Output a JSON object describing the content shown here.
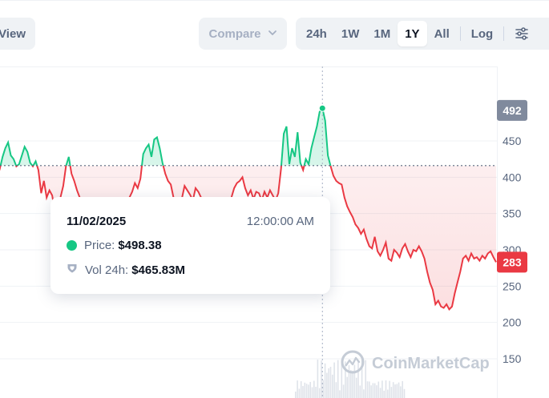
{
  "toolbar": {
    "view_label": "View",
    "compare_label": "Compare",
    "ranges": [
      {
        "label": "24h",
        "active": false
      },
      {
        "label": "1W",
        "active": false
      },
      {
        "label": "1M",
        "active": false
      },
      {
        "label": "1Y",
        "active": true
      },
      {
        "label": "All",
        "active": false
      }
    ],
    "log_label": "Log",
    "settings_icon": "sliders-icon"
  },
  "tooltip": {
    "date": "11/02/2025",
    "time": "12:00:00 AM",
    "price_label": "Price:",
    "price_value": "$498.38",
    "vol_label": "Vol 24h:",
    "vol_value": "$465.83M"
  },
  "watermark": "CoinMarketCap",
  "colors": {
    "up": "#16c784",
    "down": "#ea3943",
    "high_badge": "#808a9d"
  },
  "chart_data": {
    "type": "line",
    "y_ticks": [
      150,
      200,
      250,
      300,
      350,
      400,
      450
    ],
    "ylim": [
      125,
      525
    ],
    "reference_price": 416,
    "high_value": 492,
    "high_label": "492",
    "current_value": 283,
    "current_label": "283",
    "series": [
      {
        "values": [
          432,
          438,
          425,
          418,
          412,
          428,
          440,
          448,
          430,
          425,
          415,
          418,
          430,
          442,
          435,
          420,
          415,
          422,
          410,
          378,
          395,
          372,
          382,
          375,
          352,
          365,
          372,
          388,
          415,
          428,
          405,
          395,
          382,
          372,
          358,
          350,
          345,
          338,
          350,
          352,
          340,
          335,
          342,
          352,
          348,
          340,
          335,
          345,
          350,
          362,
          370,
          372,
          380,
          392,
          385,
          398,
          432,
          440,
          445,
          428,
          452,
          455,
          440,
          420,
          405,
          395,
          390,
          372,
          360,
          350,
          370,
          388,
          382,
          376,
          368,
          385,
          380,
          372,
          360,
          342,
          335,
          350,
          362,
          358,
          365,
          352,
          345,
          355,
          372,
          385,
          392,
          395,
          400,
          385,
          375,
          382,
          370,
          380,
          378,
          368,
          380,
          372,
          382,
          375,
          368,
          378,
          412,
          460,
          470,
          418,
          440,
          428,
          462,
          420,
          410,
          425,
          418,
          440,
          455,
          470,
          490,
          495,
          478,
          430,
          415,
          402,
          395,
          392,
          390,
          372,
          360,
          352,
          345,
          335,
          330,
          322,
          328,
          315,
          305,
          302,
          318,
          298,
          292,
          300,
          310,
          288,
          285,
          300,
          296,
          290,
          302,
          308,
          298,
          290,
          300,
          298,
          305,
          298,
          288,
          270,
          255,
          245,
          225,
          230,
          222,
          220,
          225,
          218,
          222,
          240,
          255,
          270,
          288,
          292,
          285,
          295,
          288,
          290,
          285,
          292,
          288,
          295,
          298,
          290,
          283
        ]
      }
    ]
  }
}
